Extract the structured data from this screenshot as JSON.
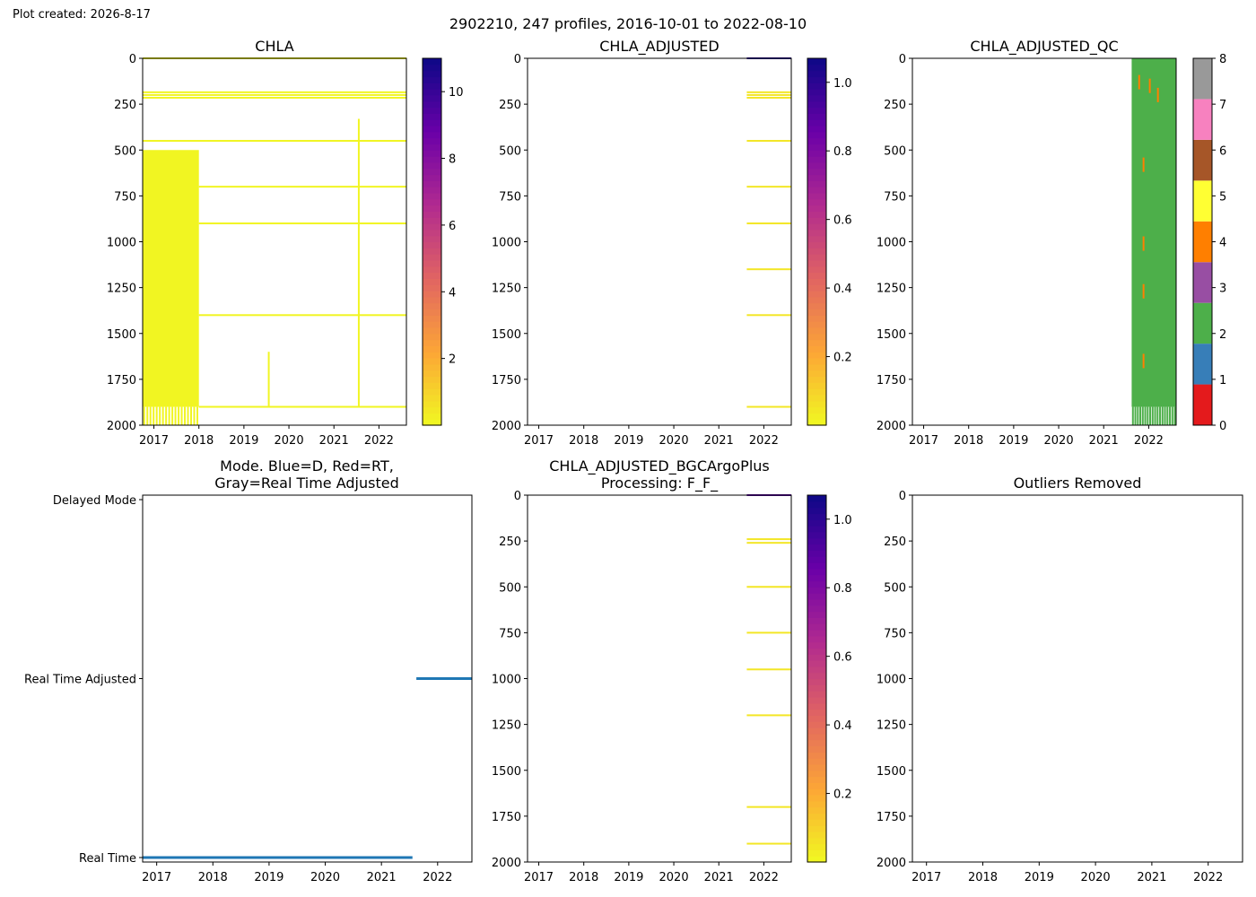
{
  "created": "Plot created: 2026-8-17",
  "suptitle": "2902210, 247 profiles, 2016-10-01 to 2022-08-10",
  "x_axis_ticks": [
    "2017",
    "2018",
    "2019",
    "2020",
    "2021",
    "2022"
  ],
  "depth_ticks": [
    "0",
    "250",
    "500",
    "750",
    "1000",
    "1250",
    "1500",
    "1750",
    "2000"
  ],
  "colors": {
    "low": "#f0f921",
    "high": "#0d0887",
    "mode_line": "#1f77b4",
    "qc": [
      "#e41a1c",
      "#377eb8",
      "#4daf4a",
      "#984ea3",
      "#ff7f00",
      "#ffff33",
      "#a65628",
      "#f781bf",
      "#999999"
    ]
  },
  "chart_data": [
    {
      "id": "chla",
      "type": "heatmap",
      "title": "CHLA",
      "x_range": [
        "2016-10-01",
        "2022-08-10"
      ],
      "ylim": [
        2000,
        0
      ],
      "colorbar": {
        "range": [
          0,
          11
        ],
        "ticks": [
          "2",
          "4",
          "6",
          "8",
          "10"
        ],
        "colormap": "plasma_r"
      },
      "blocks": [
        {
          "x0": "2016-10-01",
          "x1": "2018-01-01",
          "depth0": 500,
          "depth1": 1900,
          "value": 0.1
        }
      ],
      "layers": [
        {
          "x0": "2016-10-01",
          "x1": "2022-08-10",
          "depth": 0,
          "value": 0.1
        },
        {
          "x0": "2016-10-01",
          "x1": "2022-08-10",
          "depth": 185,
          "value": 0.1
        },
        {
          "x0": "2016-10-01",
          "x1": "2022-08-10",
          "depth": 200,
          "value": 0.1
        },
        {
          "x0": "2016-10-01",
          "x1": "2022-08-10",
          "depth": 215,
          "value": 0.1
        },
        {
          "x0": "2016-10-01",
          "x1": "2022-08-10",
          "depth": 450,
          "value": 0.1
        },
        {
          "x0": "2018-01-01",
          "x1": "2022-08-10",
          "depth": 700,
          "value": 0.1
        },
        {
          "x0": "2018-01-01",
          "x1": "2022-08-10",
          "depth": 900,
          "value": 0.1
        },
        {
          "x0": "2018-01-01",
          "x1": "2022-08-10",
          "depth": 1400,
          "value": 0.1
        },
        {
          "x0": "2018-01-01",
          "x1": "2022-08-10",
          "depth": 1900,
          "value": 0.1
        }
      ],
      "profiles": [
        {
          "x": "2021-07-20",
          "depth0": 330,
          "depth1": 1900,
          "value": 0.1
        },
        {
          "x": "2019-07-20",
          "depth0": 1600,
          "depth1": 1900,
          "value": 0.1
        }
      ]
    },
    {
      "id": "chla_adj",
      "type": "heatmap",
      "title": "CHLA_ADJUSTED",
      "x_range": [
        "2016-10-01",
        "2022-08-10"
      ],
      "ylim": [
        2000,
        0
      ],
      "colorbar": {
        "range": [
          0,
          1.07
        ],
        "ticks": [
          "0.2",
          "0.4",
          "0.6",
          "0.8",
          "1.0"
        ],
        "colormap": "plasma_r"
      },
      "layers": [
        {
          "x0": "2021-08-15",
          "x1": "2022-08-10",
          "depth": 0,
          "value": 1.0
        },
        {
          "x0": "2021-08-15",
          "x1": "2022-08-10",
          "depth": 185,
          "value": 0.05
        },
        {
          "x0": "2021-08-15",
          "x1": "2022-08-10",
          "depth": 200,
          "value": 0.05
        },
        {
          "x0": "2021-08-15",
          "x1": "2022-08-10",
          "depth": 215,
          "value": 0.05
        },
        {
          "x0": "2021-08-15",
          "x1": "2022-08-10",
          "depth": 450,
          "value": 0.05
        },
        {
          "x0": "2021-08-15",
          "x1": "2022-08-10",
          "depth": 700,
          "value": 0.05
        },
        {
          "x0": "2021-08-15",
          "x1": "2022-08-10",
          "depth": 900,
          "value": 0.05
        },
        {
          "x0": "2021-08-15",
          "x1": "2022-08-10",
          "depth": 1150,
          "value": 0.05
        },
        {
          "x0": "2021-08-15",
          "x1": "2022-08-10",
          "depth": 1400,
          "value": 0.05
        },
        {
          "x0": "2021-08-15",
          "x1": "2022-08-10",
          "depth": 1900,
          "value": 0.05
        }
      ]
    },
    {
      "id": "chla_qc",
      "type": "heatmap",
      "title": "CHLA_ADJUSTED_QC",
      "x_range": [
        "2016-10-01",
        "2022-08-10"
      ],
      "ylim": [
        2000,
        0
      ],
      "colorbar": {
        "range": [
          0,
          8
        ],
        "ticks": [
          "0",
          "1",
          "2",
          "3",
          "4",
          "5",
          "6",
          "7",
          "8"
        ],
        "colormap": "qc"
      },
      "blocks": [
        {
          "x0": "2021-08-15",
          "x1": "2022-08-10",
          "depth0": 0,
          "depth1": 1900,
          "value": 2
        }
      ],
      "spots": [
        {
          "x": "2021-10-15",
          "depth": 130,
          "value": 4
        },
        {
          "x": "2022-01-10",
          "depth": 150,
          "value": 4
        },
        {
          "x": "2022-03-15",
          "depth": 200,
          "value": 4
        },
        {
          "x": "2021-11-20",
          "depth": 580,
          "value": 4
        },
        {
          "x": "2021-11-20",
          "depth": 1010,
          "value": 4
        },
        {
          "x": "2021-11-20",
          "depth": 1270,
          "value": 4
        },
        {
          "x": "2021-11-20",
          "depth": 1650,
          "value": 4
        }
      ]
    },
    {
      "id": "mode",
      "type": "line",
      "title": "Mode. Blue=D, Red=RT,",
      "subtitle": "Gray=Real Time Adjusted",
      "x_range": [
        "2016-10-01",
        "2022-08-10"
      ],
      "categories": [
        "Real Time",
        "Real Time Adjusted",
        "Delayed Mode"
      ],
      "series": [
        {
          "x0": "2016-10-01",
          "x1": "2021-07-20",
          "category": "Real Time"
        },
        {
          "x0": "2021-08-15",
          "x1": "2022-08-10",
          "category": "Real Time Adjusted"
        }
      ]
    },
    {
      "id": "bgc",
      "type": "heatmap",
      "title": "CHLA_ADJUSTED_BGCArgoPlus",
      "subtitle": "Processing: F_F_",
      "x_range": [
        "2016-10-01",
        "2022-08-10"
      ],
      "ylim": [
        2000,
        0
      ],
      "colorbar": {
        "range": [
          0,
          1.07
        ],
        "ticks": [
          "0.2",
          "0.4",
          "0.6",
          "0.8",
          "1.0"
        ],
        "colormap": "plasma_r"
      },
      "layers": [
        {
          "x0": "2021-08-15",
          "x1": "2022-08-10",
          "depth": 0,
          "value": 0.9
        },
        {
          "x0": "2021-08-15",
          "x1": "2022-08-10",
          "depth": 240,
          "value": 0.05
        },
        {
          "x0": "2021-08-15",
          "x1": "2022-08-10",
          "depth": 260,
          "value": 0.05
        },
        {
          "x0": "2021-08-15",
          "x1": "2022-08-10",
          "depth": 500,
          "value": 0.05
        },
        {
          "x0": "2021-08-15",
          "x1": "2022-08-10",
          "depth": 750,
          "value": 0.05
        },
        {
          "x0": "2021-08-15",
          "x1": "2022-08-10",
          "depth": 950,
          "value": 0.05
        },
        {
          "x0": "2021-08-15",
          "x1": "2022-08-10",
          "depth": 1200,
          "value": 0.05
        },
        {
          "x0": "2021-08-15",
          "x1": "2022-08-10",
          "depth": 1700,
          "value": 0.05
        },
        {
          "x0": "2021-08-15",
          "x1": "2022-08-10",
          "depth": 1900,
          "value": 0.05
        }
      ]
    },
    {
      "id": "outliers",
      "type": "heatmap",
      "title": "Outliers Removed",
      "x_range": [
        "2016-10-01",
        "2022-08-10"
      ],
      "ylim": [
        2000,
        0
      ]
    }
  ]
}
